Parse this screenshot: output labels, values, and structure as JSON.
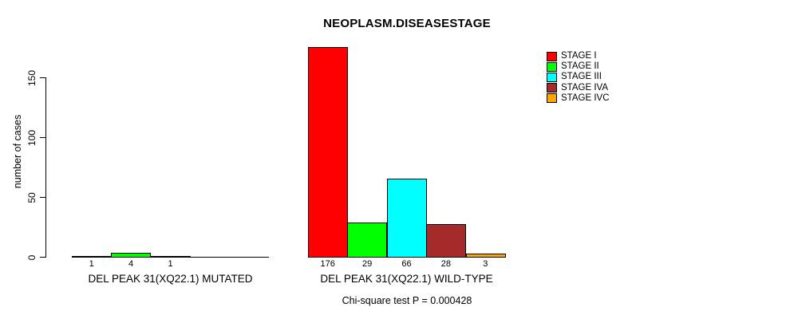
{
  "chart_data": {
    "type": "bar",
    "title": "NEOPLASM.DISEASESTAGE",
    "xlabel": "",
    "ylabel": "number of cases",
    "groups": [
      "DEL PEAK 31(XQ22.1) MUTATED",
      "DEL PEAK 31(XQ22.1) WILD-TYPE"
    ],
    "series": [
      {
        "name": "STAGE I",
        "color": "#FF0000",
        "values": [
          1,
          176
        ]
      },
      {
        "name": "STAGE II",
        "color": "#00FF00",
        "values": [
          4,
          29
        ]
      },
      {
        "name": "STAGE III",
        "color": "#00FFFF",
        "values": [
          1,
          66
        ]
      },
      {
        "name": "STAGE IVA",
        "color": "#A52A2A",
        "values": [
          0,
          28
        ]
      },
      {
        "name": "STAGE IVC",
        "color": "#FFA500",
        "values": [
          0,
          3
        ]
      }
    ],
    "bar_value_labels": {
      "shown_for_nonzero_only": true,
      "group1": [
        "1",
        "4",
        "1"
      ],
      "group2": [
        "176",
        "29",
        "66",
        "28",
        "3"
      ]
    },
    "ylim": [
      0,
      176
    ],
    "yticks": [
      0,
      50,
      100,
      150
    ],
    "grid": false,
    "legend_position": "top-right",
    "annotation": "Chi-square test P = 0.000428"
  },
  "colors": {
    "axis": "#000000",
    "text": "#000000",
    "background": "#FFFFFF"
  }
}
